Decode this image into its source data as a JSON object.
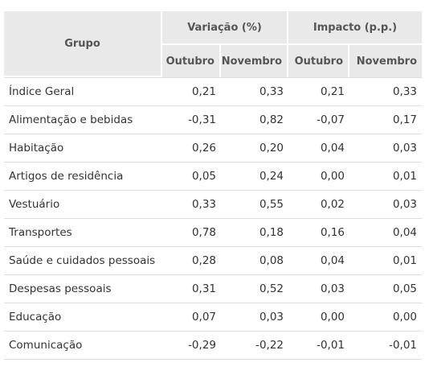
{
  "header": {
    "grupo": "Grupo",
    "variacao": "Variação (%)",
    "impacto": "Impacto (p.p.)",
    "subcols": [
      "Outubro",
      "Novembro",
      "Outubro",
      "Novembro"
    ]
  },
  "rows": [
    {
      "grupo": "Índice Geral",
      "var_out": "0,21",
      "var_nov": "0,33",
      "imp_out": "0,21",
      "imp_nov": "0,33"
    },
    {
      "grupo": "Alimentação e bebidas",
      "var_out": "-0,31",
      "var_nov": "0,82",
      "imp_out": "-0,07",
      "imp_nov": "0,17"
    },
    {
      "grupo": "Habitação",
      "var_out": "0,26",
      "var_nov": "0,20",
      "imp_out": "0,04",
      "imp_nov": "0,03"
    },
    {
      "grupo": "Artigos de residência",
      "var_out": "0,05",
      "var_nov": "0,24",
      "imp_out": "0,00",
      "imp_nov": "0,01"
    },
    {
      "grupo": "Vestuário",
      "var_out": "0,33",
      "var_nov": "0,55",
      "imp_out": "0,02",
      "imp_nov": "0,03"
    },
    {
      "grupo": "Transportes",
      "var_out": "0,78",
      "var_nov": "0,18",
      "imp_out": "0,16",
      "imp_nov": "0,04"
    },
    {
      "grupo": "Saúde e cuidados pessoais",
      "var_out": "0,28",
      "var_nov": "0,08",
      "imp_out": "0,04",
      "imp_nov": "0,01"
    },
    {
      "grupo": "Despesas pessoais",
      "var_out": "0,31",
      "var_nov": "0,52",
      "imp_out": "0,03",
      "imp_nov": "0,05"
    },
    {
      "grupo": "Educação",
      "var_out": "0,07",
      "var_nov": "0,03",
      "imp_out": "0,00",
      "imp_nov": "0,00"
    },
    {
      "grupo": "Comunicação",
      "var_out": "-0,29",
      "var_nov": "-0,22",
      "imp_out": "-0,01",
      "imp_nov": "-0,01"
    }
  ]
}
